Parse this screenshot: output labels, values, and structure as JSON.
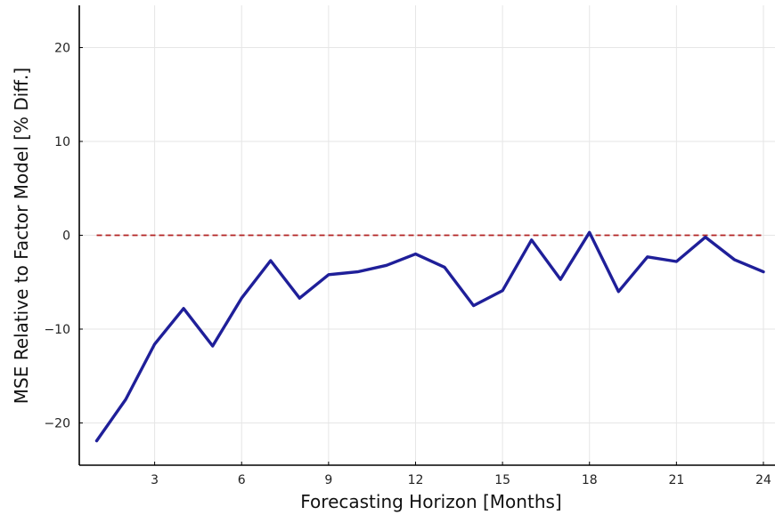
{
  "chart_data": {
    "type": "line",
    "title": "",
    "xlabel": "Forecasting Horizon [Months]",
    "ylabel": "MSE Relative to Factor Model [% Diff.]",
    "xlim": [
      0.4,
      24.4
    ],
    "ylim": [
      -24.5,
      24.5
    ],
    "xticks": [
      3,
      6,
      9,
      12,
      15,
      18,
      21,
      24
    ],
    "yticks": [
      -20,
      -10,
      0,
      10,
      20
    ],
    "xtick_labels": [
      "3",
      "6",
      "9",
      "12",
      "15",
      "18",
      "21",
      "24"
    ],
    "ytick_labels": [
      "−20",
      "−10",
      "0",
      "10",
      "20"
    ],
    "grid": true,
    "series": [
      {
        "color": "#1f1f99",
        "style": "solid",
        "x": [
          1,
          2,
          3,
          4,
          5,
          6,
          7,
          8,
          9,
          10,
          11,
          12,
          13,
          14,
          15,
          16,
          17,
          18,
          19,
          20,
          21,
          22,
          23,
          24
        ],
        "values": [
          -21.9,
          -17.5,
          -11.6,
          -7.8,
          -11.8,
          -6.7,
          -2.7,
          -6.7,
          -4.2,
          -3.9,
          -3.2,
          -2.0,
          -3.4,
          -7.5,
          -5.9,
          -0.5,
          -4.7,
          0.3,
          -6.0,
          -2.3,
          -2.8,
          -0.2,
          -2.6,
          -3.9
        ]
      }
    ],
    "reference_line": {
      "y": 0,
      "x_from": 1,
      "x_to": 24,
      "color": "#b22222",
      "style": "dashed"
    }
  }
}
